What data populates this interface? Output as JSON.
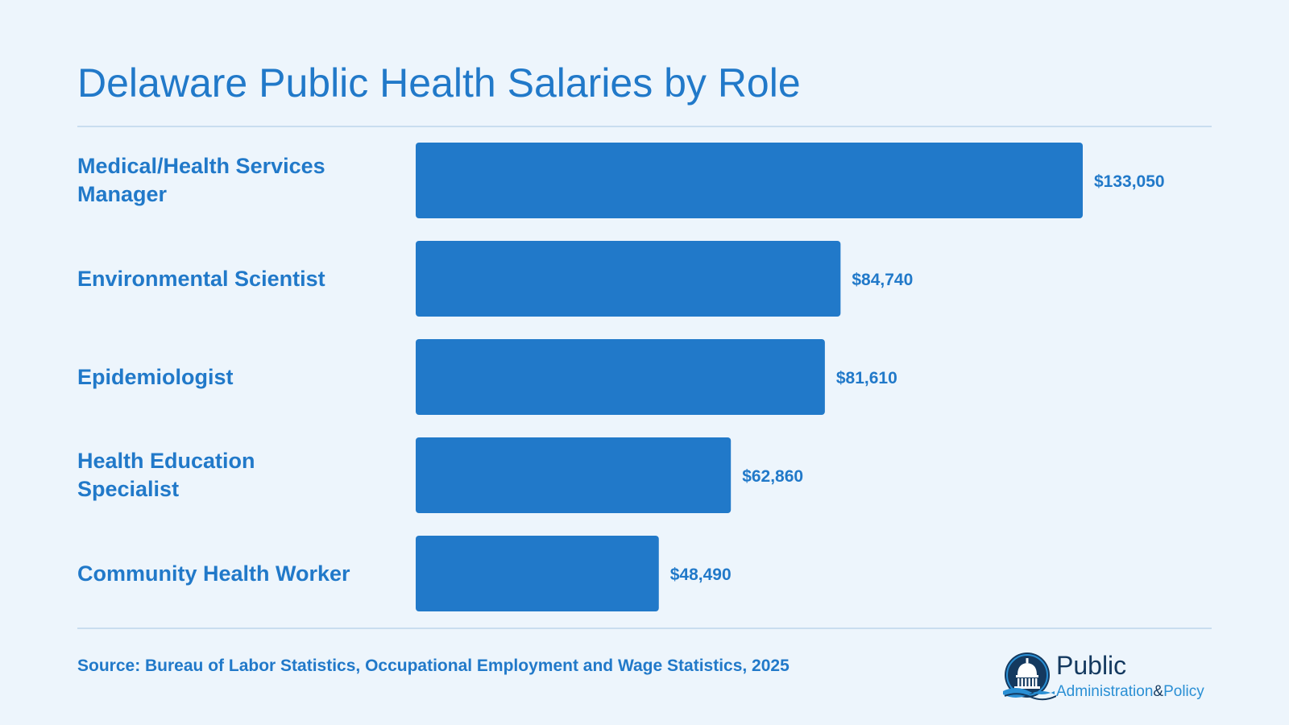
{
  "title": "Delaware Public Health Salaries by Role",
  "source": "Source: Bureau of Labor Statistics, Occupational Employment and Wage Statistics, 2025",
  "logo": {
    "line1": "Public",
    "line2a": "Administration",
    "amp": "&",
    "line2b": "Policy"
  },
  "colors": {
    "background": "#edf5fc",
    "bar": "#2179c9",
    "text": "#2179c9",
    "divider": "#c9ddef"
  },
  "chart_data": {
    "type": "bar",
    "orientation": "horizontal",
    "categories": [
      "Medical/Health Services Manager",
      "Environmental Scientist",
      "Epidemiologist",
      "Health Education Specialist",
      "Community Health Worker"
    ],
    "values": [
      133050,
      84740,
      81610,
      62860,
      48490
    ],
    "value_labels": [
      "$133,050",
      "$84,740",
      "$81,610",
      "$62,860",
      "$48,490"
    ],
    "grid": false,
    "legend": "none"
  }
}
